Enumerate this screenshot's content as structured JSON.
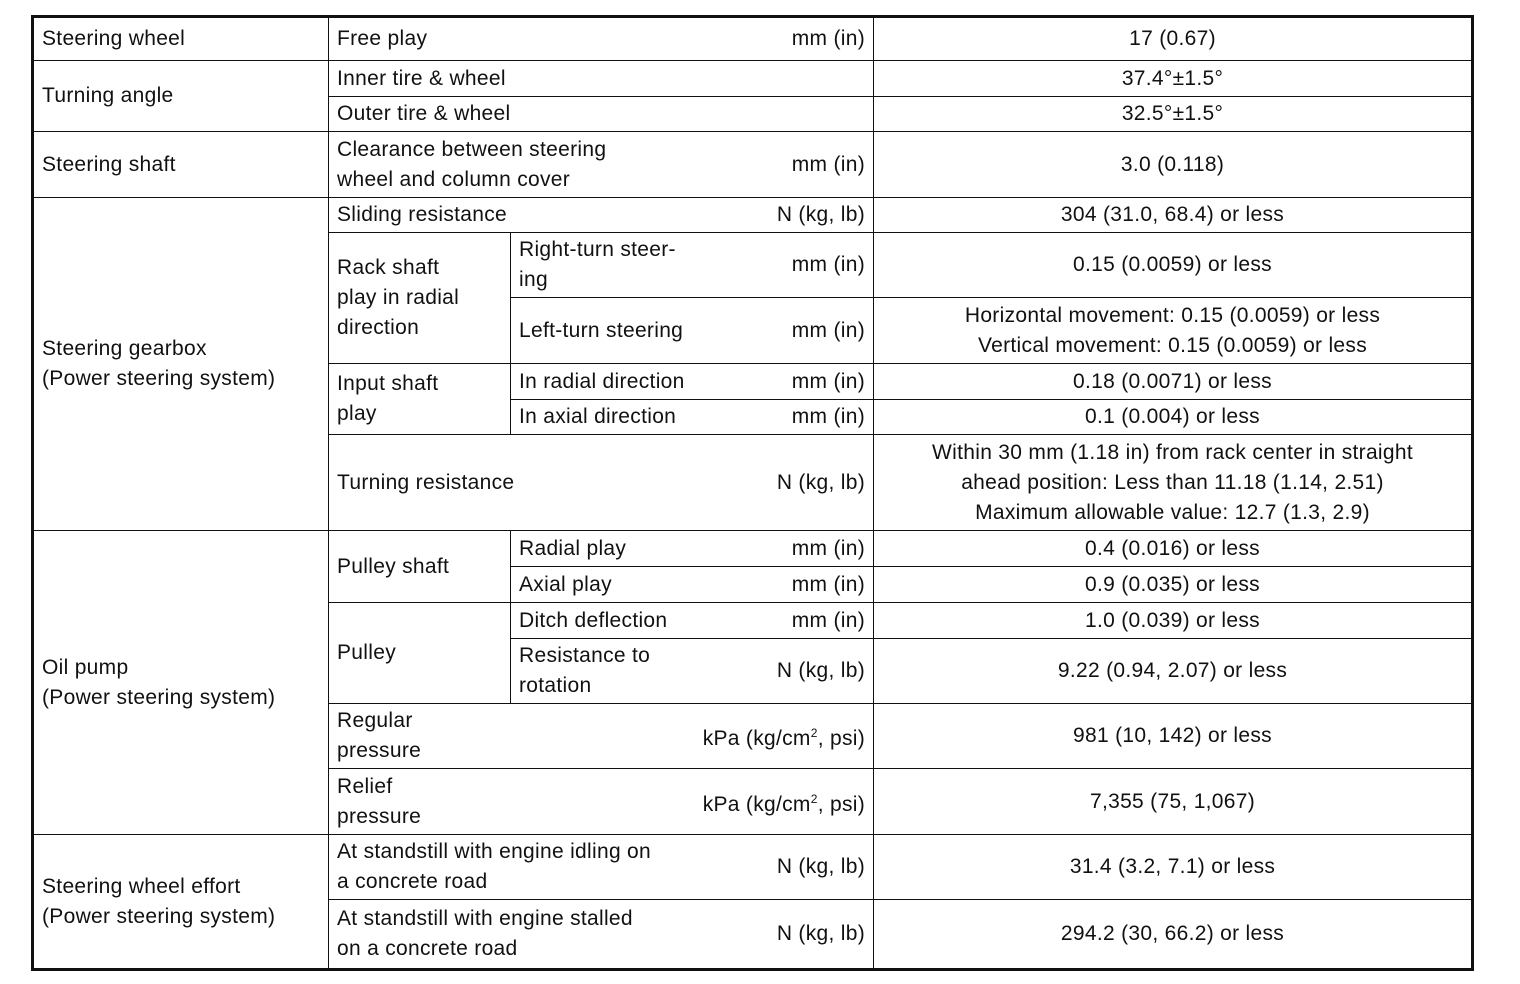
{
  "rows": {
    "r1": {
      "cat": "Steering wheel",
      "item": "Free play",
      "unit": "mm (in)",
      "value": "17 (0.67)"
    },
    "r2": {
      "cat": "Turning angle",
      "item": "Inner tire & wheel",
      "value": "37.4°±1.5°"
    },
    "r3": {
      "item": "Outer tire & wheel",
      "value": "32.5°±1.5°"
    },
    "r4": {
      "cat": "Steering shaft",
      "item": "Clearance between steering\nwheel and column cover",
      "unit": "mm (in)",
      "value": "3.0 (0.118)"
    },
    "r5": {
      "cat": "Steering gearbox\n(Power steering system)",
      "item": "Sliding resistance",
      "unit": "N (kg, lb)",
      "value": "304 (31.0, 68.4) or less"
    },
    "r6": {
      "group": "Rack shaft\nplay in radial\ndirection",
      "item": "Right-turn steer-\ning",
      "unit": "mm (in)",
      "value": "0.15 (0.0059) or less"
    },
    "r7": {
      "item": "Left-turn steering",
      "unit": "mm (in)",
      "value": "Horizontal movement: 0.15 (0.0059) or less\nVertical movement: 0.15 (0.0059) or less"
    },
    "r8": {
      "group": "Input shaft\nplay",
      "item": "In radial direction",
      "unit": "mm (in)",
      "value": "0.18 (0.0071) or less"
    },
    "r9": {
      "item": "In axial direction",
      "unit": "mm (in)",
      "value": "0.1 (0.004) or less"
    },
    "r10": {
      "item": "Turning resistance",
      "unit": "N (kg, lb)",
      "value": "Within 30 mm (1.18 in) from rack center in straight\nahead position: Less than 11.18 (1.14, 2.51)\nMaximum allowable value: 12.7 (1.3, 2.9)"
    },
    "r11": {
      "cat": "Oil pump\n(Power steering system)",
      "group": "Pulley shaft",
      "item": "Radial play",
      "unit": "mm (in)",
      "value": "0.4 (0.016) or less"
    },
    "r12": {
      "item": "Axial play",
      "unit": "mm (in)",
      "value": "0.9 (0.035) or less"
    },
    "r13": {
      "group": "Pulley",
      "item": "Ditch deflection",
      "unit": "mm (in)",
      "value": "1.0 (0.039) or less"
    },
    "r14": {
      "item": "Resistance to\nrotation",
      "unit": "N (kg, lb)",
      "value": "9.22 (0.94, 2.07) or less"
    },
    "r15": {
      "item": "Regular\npressure",
      "unit_a": "kPa (kg/cm",
      "unit_sup": "2",
      "unit_b": ", psi)",
      "value": "981 (10, 142) or less"
    },
    "r16": {
      "item": "Relief\npressure",
      "unit_a": "kPa (kg/cm",
      "unit_sup": "2",
      "unit_b": ", psi)",
      "value": "7,355 (75, 1,067)"
    },
    "r17": {
      "cat": "Steering wheel effort\n(Power steering system)",
      "item": "At standstill with engine idling on\na concrete road",
      "unit": "N (kg, lb)",
      "value": "31.4 (3.2, 7.1) or less"
    },
    "r18": {
      "item": "At standstill with engine stalled\non a concrete road",
      "unit": "N (kg, lb)",
      "value": "294.2 (30, 66.2) or less"
    }
  }
}
